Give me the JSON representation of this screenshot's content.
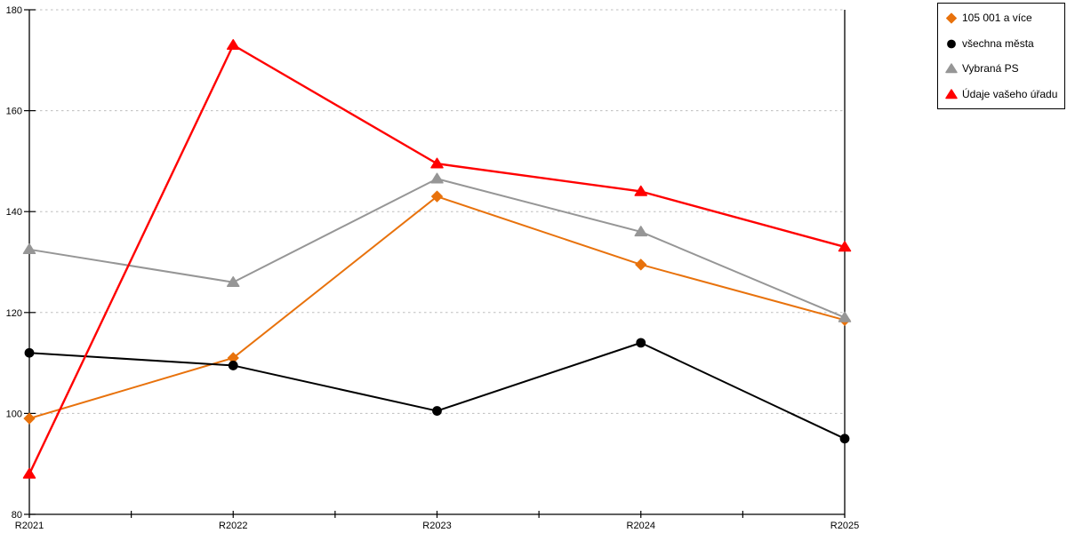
{
  "chart_data": {
    "type": "line",
    "categories": [
      "R2021",
      "R2022",
      "R2023",
      "R2024",
      "R2025"
    ],
    "series": [
      {
        "name": "105 001 a více",
        "color": "#E8720C",
        "marker": "diamond",
        "values": [
          99,
          111,
          143,
          129.5,
          118.5
        ]
      },
      {
        "name": "všechna města",
        "color": "#000000",
        "marker": "circle",
        "values": [
          112,
          109.5,
          100.5,
          114,
          95
        ]
      },
      {
        "name": "Vybraná PS",
        "color": "#969696",
        "marker": "triangle",
        "values": [
          132.5,
          126,
          146.5,
          136,
          119
        ]
      },
      {
        "name": "Údaje vašeho úřadu",
        "color": "#FF0000",
        "marker": "triangle",
        "values": [
          88,
          173,
          149.5,
          144,
          133
        ]
      }
    ],
    "title": "",
    "xlabel": "",
    "ylabel": "",
    "ylim": [
      80,
      180
    ],
    "yticks": [
      80,
      100,
      120,
      140,
      160,
      180
    ],
    "grid": "horizontal dotted",
    "grid_color": "#bdbdbd",
    "axis_color": "#000000",
    "legend_position": "top-right"
  }
}
